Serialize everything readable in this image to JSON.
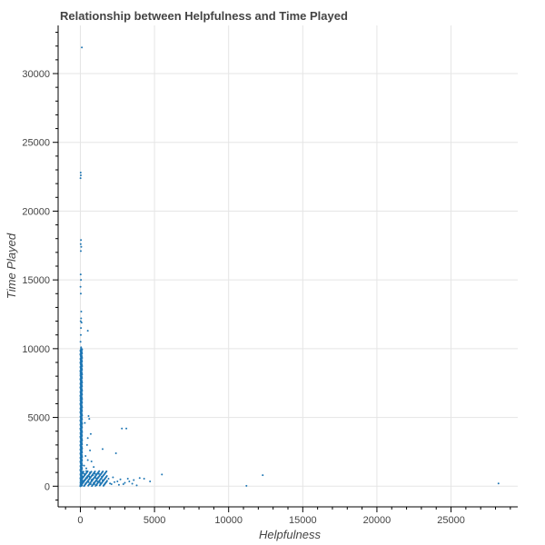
{
  "chart_data": {
    "type": "scatter",
    "title": "Relationship between Helpfulness and Time Played",
    "xlabel": "Helpfulness",
    "ylabel": "Time Played",
    "xlim": [
      -1500,
      29500
    ],
    "ylim": [
      -1500,
      33500
    ],
    "x_ticks": [
      0,
      5000,
      10000,
      15000,
      20000,
      25000
    ],
    "y_ticks": [
      0,
      5000,
      10000,
      15000,
      20000,
      25000,
      30000
    ],
    "x_minor_step": 1000,
    "y_minor_step": 1000,
    "grid": true,
    "marker_color": "#1f77b4",
    "points": [
      [
        100,
        31900
      ],
      [
        20,
        22800
      ],
      [
        30,
        22600
      ],
      [
        10,
        22400
      ],
      [
        40,
        17900
      ],
      [
        20,
        17600
      ],
      [
        60,
        17400
      ],
      [
        30,
        17100
      ],
      [
        20,
        15400
      ],
      [
        40,
        15000
      ],
      [
        10,
        14500
      ],
      [
        30,
        14000
      ],
      [
        60,
        12700
      ],
      [
        50,
        12200
      ],
      [
        20,
        12000
      ],
      [
        80,
        11900
      ],
      [
        40,
        11500
      ],
      [
        500,
        11300
      ],
      [
        30,
        11000
      ],
      [
        10,
        10500
      ],
      [
        50,
        10100
      ],
      [
        20,
        9800
      ],
      [
        70,
        9400
      ],
      [
        30,
        9000
      ],
      [
        40,
        8600
      ],
      [
        10,
        8200
      ],
      [
        60,
        7800
      ],
      [
        20,
        7500
      ],
      [
        50,
        7100
      ],
      [
        30,
        6800
      ],
      [
        10,
        6400
      ],
      [
        80,
        6100
      ],
      [
        40,
        5700
      ],
      [
        20,
        5400
      ],
      [
        60,
        5100
      ],
      [
        30,
        4800
      ],
      [
        10,
        4500
      ],
      [
        50,
        4200
      ],
      [
        70,
        3900
      ],
      [
        20,
        3600
      ],
      [
        40,
        3300
      ],
      [
        30,
        3000
      ],
      [
        10,
        2700
      ],
      [
        60,
        2400
      ],
      [
        20,
        2100
      ],
      [
        50,
        1800
      ],
      [
        30,
        1500
      ],
      [
        10,
        1200
      ],
      [
        40,
        900
      ],
      [
        20,
        600
      ],
      [
        60,
        300
      ],
      [
        10,
        100
      ],
      [
        550,
        5100
      ],
      [
        600,
        4900
      ],
      [
        700,
        3800
      ],
      [
        500,
        3500
      ],
      [
        300,
        4600
      ],
      [
        450,
        3000
      ],
      [
        650,
        2600
      ],
      [
        350,
        2200
      ],
      [
        500,
        1900
      ],
      [
        750,
        1800
      ],
      [
        250,
        1500
      ],
      [
        900,
        1400
      ],
      [
        400,
        1100
      ],
      [
        1000,
        900
      ],
      [
        600,
        700
      ],
      [
        1200,
        650
      ],
      [
        800,
        500
      ],
      [
        1500,
        450
      ],
      [
        1300,
        300
      ],
      [
        900,
        250
      ],
      [
        700,
        150
      ],
      [
        1100,
        80
      ],
      [
        1600,
        120
      ],
      [
        1800,
        400
      ],
      [
        2000,
        200
      ],
      [
        2200,
        650
      ],
      [
        2400,
        2400
      ],
      [
        2500,
        350
      ],
      [
        2600,
        100
      ],
      [
        1500,
        2700
      ],
      [
        2800,
        4200
      ],
      [
        3100,
        4200
      ],
      [
        3000,
        250
      ],
      [
        3200,
        550
      ],
      [
        3500,
        180
      ],
      [
        3800,
        60
      ],
      [
        4000,
        600
      ],
      [
        4300,
        550
      ],
      [
        4700,
        350
      ],
      [
        5500,
        850
      ],
      [
        11200,
        30
      ],
      [
        12300,
        800
      ],
      [
        28200,
        200
      ],
      [
        150,
        700
      ],
      [
        200,
        400
      ],
      [
        250,
        900
      ],
      [
        350,
        200
      ],
      [
        400,
        1300
      ],
      [
        450,
        600
      ],
      [
        550,
        300
      ],
      [
        650,
        1000
      ],
      [
        750,
        450
      ],
      [
        850,
        800
      ],
      [
        950,
        150
      ],
      [
        1050,
        600
      ],
      [
        1150,
        350
      ],
      [
        1250,
        900
      ],
      [
        1350,
        200
      ],
      [
        1450,
        700
      ],
      [
        1700,
        250
      ],
      [
        1900,
        550
      ],
      [
        2100,
        150
      ],
      [
        2300,
        300
      ],
      [
        2700,
        500
      ],
      [
        2900,
        150
      ],
      [
        3300,
        350
      ],
      [
        3600,
        450
      ]
    ]
  }
}
